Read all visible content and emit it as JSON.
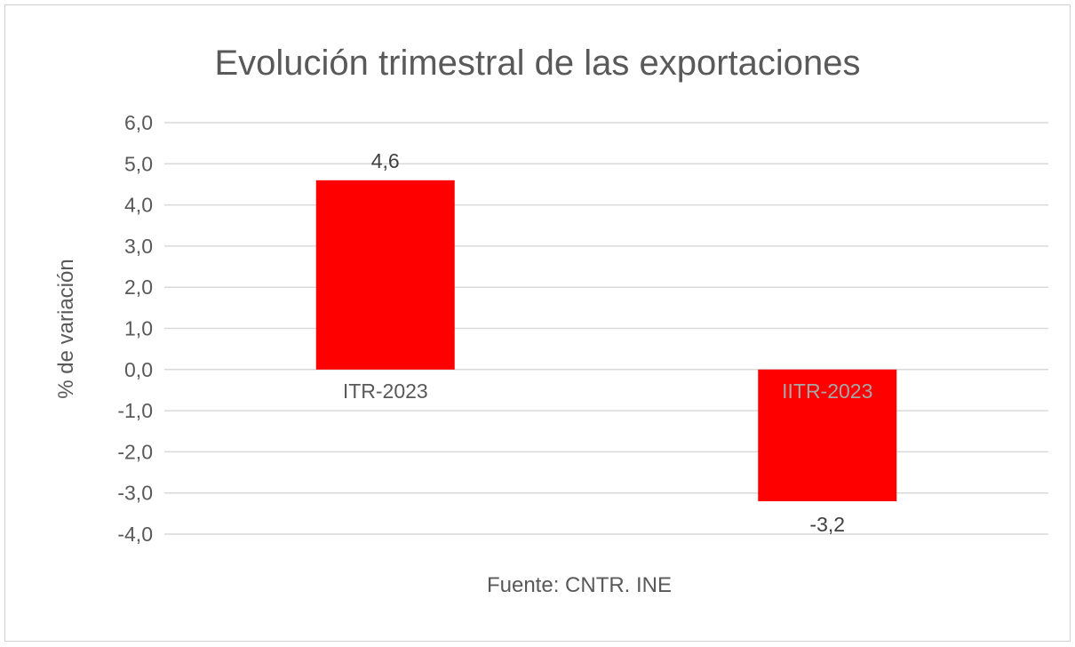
{
  "chart_data": {
    "type": "bar",
    "title": "Evolución trimestral de las exportaciones",
    "xlabel": "",
    "ylabel": "% de variación",
    "categories": [
      "ITR-2023",
      "IITR-2023"
    ],
    "values": [
      4.6,
      -3.2
    ],
    "data_labels": [
      "4,6",
      "-3,2"
    ],
    "ylim": [
      -4,
      6
    ],
    "yticks": [
      6,
      5,
      4,
      3,
      2,
      1,
      0,
      -1,
      -2,
      -3,
      -4
    ],
    "ytick_labels": [
      "6,0",
      "5,0",
      "4,0",
      "3,0",
      "2,0",
      "1,0",
      "0,0",
      "-1,0",
      "-2,0",
      "-3,0",
      "-4,0"
    ],
    "grid": true,
    "legend": "none",
    "bar_color": "#ff0000",
    "annotation": "Fuente: CNTR. INE"
  }
}
